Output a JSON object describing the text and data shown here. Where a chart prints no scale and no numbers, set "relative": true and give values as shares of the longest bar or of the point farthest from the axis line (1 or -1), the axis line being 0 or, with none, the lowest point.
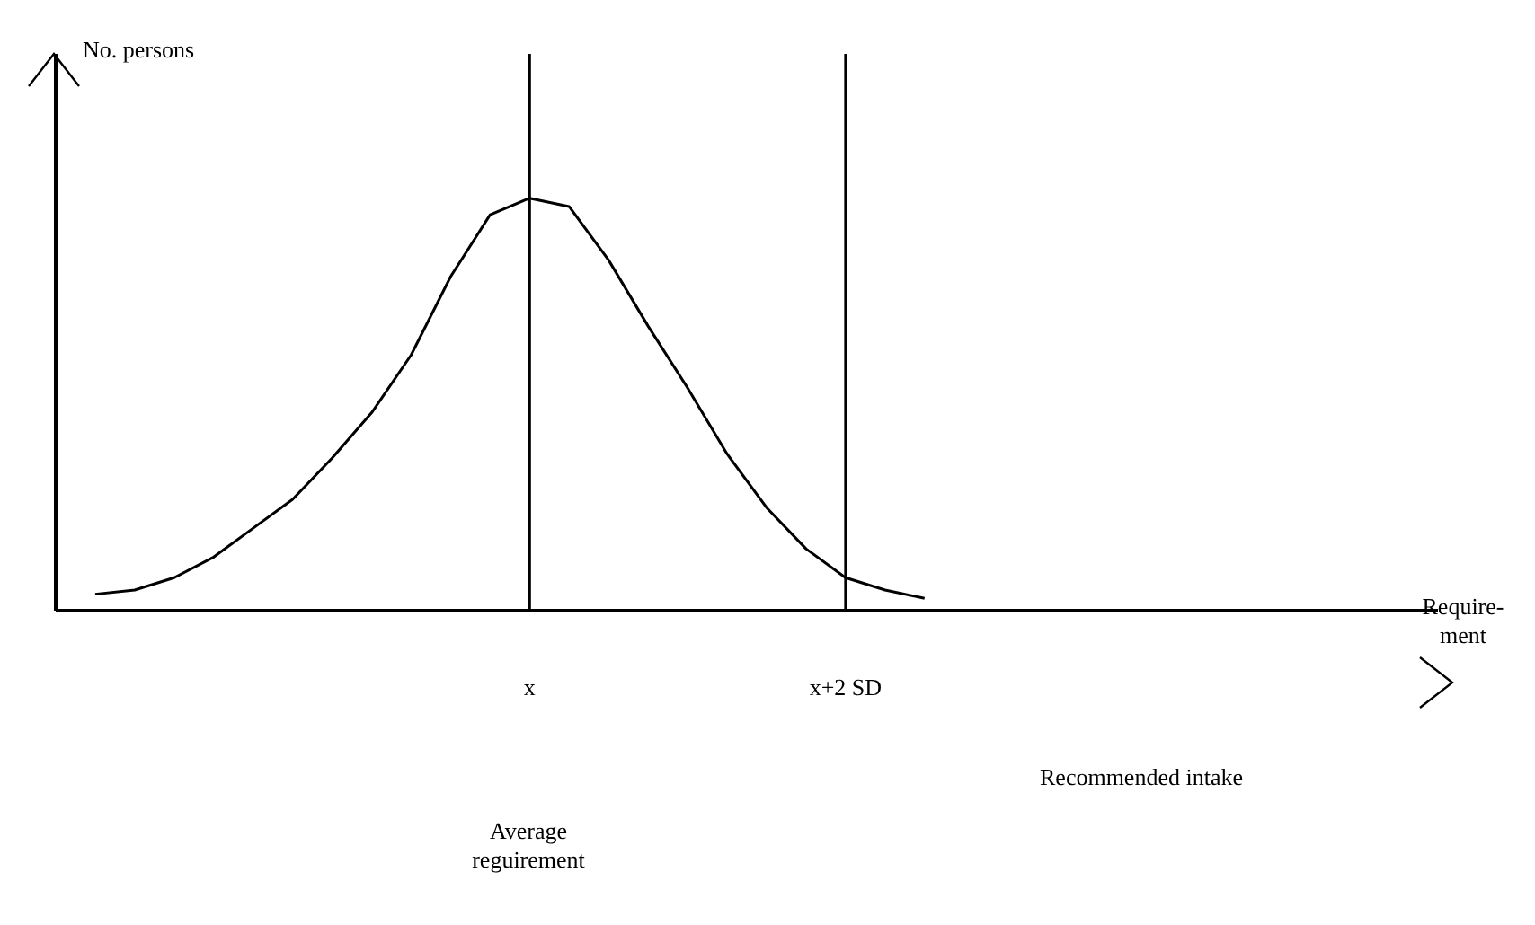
{
  "chart_data": {
    "type": "line",
    "relative": true,
    "xlabel": "Require-ment",
    "categories": [
      null,
      null,
      null,
      null,
      null,
      null,
      null,
      null,
      null,
      null,
      null,
      null,
      "x",
      null,
      null,
      null,
      null,
      null,
      null,
      null,
      "x+2 SD",
      null,
      null,
      null,
      null,
      null,
      null,
      null,
      null,
      null,
      null,
      null,
      null,
      null,
      null,
      null
    ],
    "series": [
      {
        "color": "#000000",
        "values": [
          null,
          0.04,
          0.05,
          0.08,
          0.13,
          0.2,
          0.27,
          0.37,
          0.48,
          0.62,
          0.81,
          0.96,
          1,
          0.98,
          0.85,
          0.69,
          0.54,
          0.38,
          0.25,
          0.15,
          0.08,
          0.05,
          0.03,
          null,
          null,
          null,
          null,
          null,
          null,
          null,
          null,
          null,
          null,
          null,
          null,
          null
        ]
      }
    ],
    "ref_lines": [
      {
        "axis": "x",
        "value": "x",
        "label": null,
        "color": "#000000"
      },
      {
        "axis": "x",
        "value": "x+2 SD",
        "label": null,
        "color": "#000000"
      }
    ],
    "annotations": [
      "No. persons",
      "Average reguirement",
      "Recommended intake"
    ],
    "marker": "none",
    "grid": false,
    "legend": false
  }
}
